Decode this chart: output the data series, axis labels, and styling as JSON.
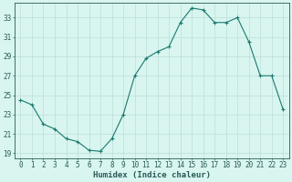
{
  "x": [
    0,
    1,
    2,
    3,
    4,
    5,
    6,
    7,
    8,
    9,
    10,
    11,
    12,
    13,
    14,
    15,
    16,
    17,
    18,
    19,
    20,
    21,
    22,
    23
  ],
  "y": [
    24.5,
    24.0,
    22.0,
    21.5,
    20.5,
    20.2,
    19.3,
    19.2,
    20.5,
    23.0,
    27.0,
    28.8,
    29.5,
    30.0,
    32.5,
    34.0,
    33.8,
    32.5,
    32.5,
    33.0,
    30.5,
    27.0,
    27.0,
    23.5
  ],
  "line_color": "#1a7a6e",
  "marker": "+",
  "marker_size": 3,
  "bg_color": "#d8f5f0",
  "grid_color": "#b8d8d4",
  "axis_color": "#2a5a55",
  "xlabel": "Humidex (Indice chaleur)",
  "ylim": [
    18.5,
    34.5
  ],
  "xlim": [
    -0.5,
    23.5
  ],
  "yticks": [
    19,
    21,
    23,
    25,
    27,
    29,
    31,
    33
  ],
  "xticks": [
    0,
    1,
    2,
    3,
    4,
    5,
    6,
    7,
    8,
    9,
    10,
    11,
    12,
    13,
    14,
    15,
    16,
    17,
    18,
    19,
    20,
    21,
    22,
    23
  ],
  "tick_fontsize": 5.5,
  "xlabel_fontsize": 6.5
}
